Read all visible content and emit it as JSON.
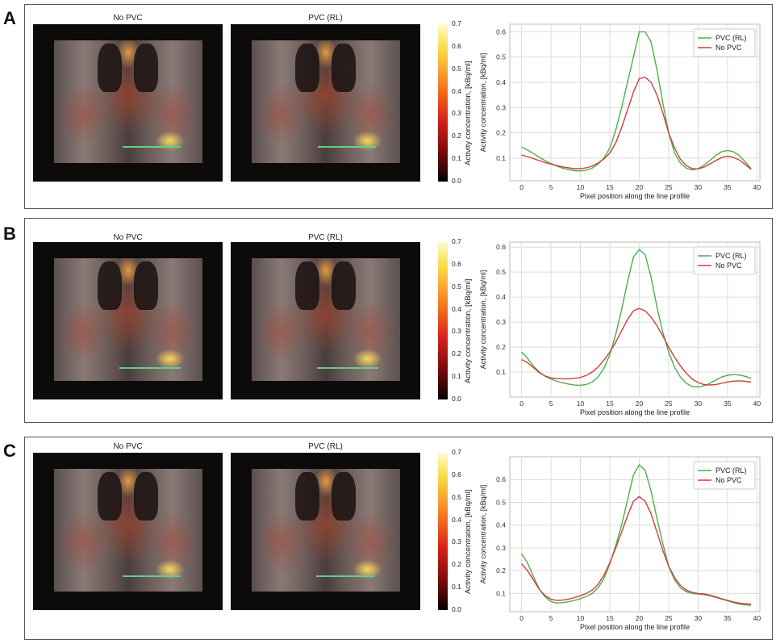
{
  "panels": [
    {
      "label": "A",
      "left_title": "No PVC",
      "right_title": "PVC (RL)"
    },
    {
      "label": "B",
      "left_title": "No PVC",
      "right_title": "PVC (RL)"
    },
    {
      "label": "C",
      "left_title": "No PVC",
      "right_title": "PVC (RL)"
    }
  ],
  "colorbar": {
    "label": "Activity concentration, [kBq/ml]",
    "ticks": [
      "0.7",
      "0.6",
      "0.5",
      "0.4",
      "0.3",
      "0.2",
      "0.1",
      "0.0"
    ]
  },
  "colors": {
    "pvc_rl": "#4daf4a",
    "no_pvc": "#d23c3c"
  },
  "chart_data": [
    {
      "type": "line",
      "xlabel": "Pixel position along the line profile",
      "ylabel": "Activity concentration, [kBq/ml]",
      "xlim": [
        -2,
        40.5
      ],
      "ylim": [
        0.01,
        0.63
      ],
      "xticks": [
        0,
        5,
        10,
        15,
        20,
        25,
        30,
        35,
        40
      ],
      "yticks": [
        0.1,
        0.2,
        0.3,
        0.4,
        0.5,
        0.6
      ],
      "legend_position": "top-right",
      "grid": true,
      "series": [
        {
          "name": "PVC (RL)",
          "color": "#4daf4a",
          "x": [
            0,
            1,
            2,
            3,
            4,
            5,
            6,
            7,
            8,
            9,
            10,
            11,
            12,
            13,
            14,
            15,
            16,
            17,
            18,
            19,
            20,
            21,
            22,
            23,
            24,
            25,
            26,
            27,
            28,
            29,
            30,
            31,
            32,
            33,
            34,
            35,
            36,
            37,
            38,
            39
          ],
          "values": [
            0.143,
            0.132,
            0.118,
            0.103,
            0.09,
            0.078,
            0.068,
            0.06,
            0.054,
            0.05,
            0.049,
            0.052,
            0.06,
            0.076,
            0.1,
            0.14,
            0.21,
            0.3,
            0.4,
            0.5,
            0.6,
            0.6,
            0.56,
            0.45,
            0.32,
            0.2,
            0.12,
            0.08,
            0.06,
            0.053,
            0.058,
            0.072,
            0.09,
            0.11,
            0.125,
            0.13,
            0.125,
            0.11,
            0.085,
            0.058
          ]
        },
        {
          "name": "No PVC",
          "color": "#d23c3c",
          "x": [
            0,
            1,
            2,
            3,
            4,
            5,
            6,
            7,
            8,
            9,
            10,
            11,
            12,
            13,
            14,
            15,
            16,
            17,
            18,
            19,
            20,
            21,
            22,
            23,
            24,
            25,
            26,
            27,
            28,
            29,
            30,
            31,
            32,
            33,
            34,
            35,
            36,
            37,
            38,
            39
          ],
          "values": [
            0.112,
            0.106,
            0.098,
            0.09,
            0.082,
            0.076,
            0.07,
            0.065,
            0.061,
            0.058,
            0.058,
            0.061,
            0.068,
            0.08,
            0.097,
            0.12,
            0.16,
            0.22,
            0.29,
            0.36,
            0.415,
            0.42,
            0.4,
            0.35,
            0.28,
            0.2,
            0.14,
            0.095,
            0.07,
            0.058,
            0.057,
            0.064,
            0.076,
            0.09,
            0.102,
            0.107,
            0.103,
            0.092,
            0.075,
            0.055
          ]
        }
      ]
    },
    {
      "type": "line",
      "xlabel": "Pixel position along the line profile",
      "ylabel": "Activity concentration, [kBq/ml]",
      "xlim": [
        -2,
        40.5
      ],
      "ylim": [
        0.0,
        0.62
      ],
      "xticks": [
        0,
        5,
        10,
        15,
        20,
        25,
        30,
        35,
        40
      ],
      "yticks": [
        0.1,
        0.2,
        0.3,
        0.4,
        0.5,
        0.6
      ],
      "legend_position": "top-right",
      "grid": true,
      "series": [
        {
          "name": "PVC (RL)",
          "color": "#4daf4a",
          "x": [
            0,
            1,
            2,
            3,
            4,
            5,
            6,
            7,
            8,
            9,
            10,
            11,
            12,
            13,
            14,
            15,
            16,
            17,
            18,
            19,
            20,
            21,
            22,
            23,
            24,
            25,
            26,
            27,
            28,
            29,
            30,
            31,
            32,
            33,
            34,
            35,
            36,
            37,
            38,
            39
          ],
          "values": [
            0.18,
            0.155,
            0.125,
            0.1,
            0.083,
            0.072,
            0.063,
            0.057,
            0.052,
            0.048,
            0.047,
            0.05,
            0.06,
            0.08,
            0.115,
            0.17,
            0.25,
            0.35,
            0.46,
            0.56,
            0.59,
            0.57,
            0.48,
            0.36,
            0.26,
            0.18,
            0.12,
            0.08,
            0.055,
            0.042,
            0.04,
            0.045,
            0.055,
            0.068,
            0.08,
            0.087,
            0.09,
            0.088,
            0.083,
            0.075
          ]
        },
        {
          "name": "No PVC",
          "color": "#d23c3c",
          "x": [
            0,
            1,
            2,
            3,
            4,
            5,
            6,
            7,
            8,
            9,
            10,
            11,
            12,
            13,
            14,
            15,
            16,
            17,
            18,
            19,
            20,
            21,
            22,
            23,
            24,
            25,
            26,
            27,
            28,
            29,
            30,
            31,
            32,
            33,
            34,
            35,
            36,
            37,
            38,
            39
          ],
          "values": [
            0.15,
            0.138,
            0.118,
            0.098,
            0.084,
            0.077,
            0.074,
            0.073,
            0.073,
            0.075,
            0.078,
            0.087,
            0.1,
            0.12,
            0.148,
            0.18,
            0.22,
            0.265,
            0.31,
            0.345,
            0.355,
            0.345,
            0.32,
            0.285,
            0.245,
            0.2,
            0.16,
            0.125,
            0.095,
            0.072,
            0.058,
            0.05,
            0.048,
            0.05,
            0.055,
            0.06,
            0.064,
            0.065,
            0.063,
            0.06
          ]
        }
      ]
    },
    {
      "type": "line",
      "xlabel": "Pixel position along the line profile",
      "ylabel": "Activity concentration, [kBq/ml]",
      "xlim": [
        -2,
        40.5
      ],
      "ylim": [
        0.02,
        0.7
      ],
      "xticks": [
        0,
        5,
        10,
        15,
        20,
        25,
        30,
        35,
        40
      ],
      "yticks": [
        0.1,
        0.2,
        0.3,
        0.4,
        0.5,
        0.6
      ],
      "legend_position": "top-right",
      "grid": true,
      "series": [
        {
          "name": "PVC (RL)",
          "color": "#4daf4a",
          "x": [
            0,
            1,
            2,
            3,
            4,
            5,
            6,
            7,
            8,
            9,
            10,
            11,
            12,
            13,
            14,
            15,
            16,
            17,
            18,
            19,
            20,
            21,
            22,
            23,
            24,
            25,
            26,
            27,
            28,
            29,
            30,
            31,
            32,
            33,
            34,
            35,
            36,
            37,
            38,
            39
          ],
          "values": [
            0.275,
            0.235,
            0.175,
            0.12,
            0.085,
            0.065,
            0.058,
            0.06,
            0.064,
            0.07,
            0.077,
            0.087,
            0.1,
            0.125,
            0.165,
            0.23,
            0.31,
            0.4,
            0.51,
            0.62,
            0.665,
            0.64,
            0.55,
            0.43,
            0.32,
            0.22,
            0.16,
            0.125,
            0.108,
            0.1,
            0.098,
            0.095,
            0.09,
            0.083,
            0.075,
            0.068,
            0.06,
            0.053,
            0.05,
            0.048
          ]
        },
        {
          "name": "No PVC",
          "color": "#d23c3c",
          "x": [
            0,
            1,
            2,
            3,
            4,
            5,
            6,
            7,
            8,
            9,
            10,
            11,
            12,
            13,
            14,
            15,
            16,
            17,
            18,
            19,
            20,
            21,
            22,
            23,
            24,
            25,
            26,
            27,
            28,
            29,
            30,
            31,
            32,
            33,
            34,
            35,
            36,
            37,
            38,
            39
          ],
          "values": [
            0.23,
            0.2,
            0.16,
            0.118,
            0.09,
            0.075,
            0.07,
            0.071,
            0.075,
            0.082,
            0.09,
            0.1,
            0.115,
            0.14,
            0.18,
            0.235,
            0.3,
            0.37,
            0.44,
            0.505,
            0.525,
            0.505,
            0.45,
            0.37,
            0.29,
            0.22,
            0.17,
            0.135,
            0.115,
            0.105,
            0.1,
            0.098,
            0.093,
            0.085,
            0.077,
            0.07,
            0.063,
            0.058,
            0.055,
            0.053
          ]
        }
      ]
    }
  ]
}
